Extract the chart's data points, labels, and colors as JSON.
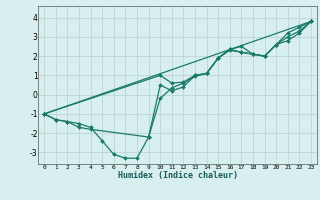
{
  "xlabel": "Humidex (Indice chaleur)",
  "bg_color": "#d8efef",
  "grid_color": "#c0d8d8",
  "line_color": "#1a7a6a",
  "xlim": [
    -0.5,
    23.5
  ],
  "ylim": [
    -3.6,
    4.6
  ],
  "yticks": [
    -3,
    -2,
    -1,
    0,
    1,
    2,
    3,
    4
  ],
  "xticks": [
    0,
    1,
    2,
    3,
    4,
    5,
    6,
    7,
    8,
    9,
    10,
    11,
    12,
    13,
    14,
    15,
    16,
    17,
    18,
    19,
    20,
    21,
    22,
    23
  ],
  "line1_x": [
    0,
    1,
    2,
    3,
    4,
    5,
    6,
    7,
    8,
    9,
    10,
    11,
    12,
    13,
    14,
    15,
    16,
    17,
    18,
    19,
    20,
    21,
    22,
    23
  ],
  "line1_y": [
    -1.0,
    -1.3,
    -1.4,
    -1.5,
    -1.7,
    -2.4,
    -3.1,
    -3.3,
    -3.3,
    -2.2,
    0.5,
    0.2,
    0.4,
    1.0,
    1.1,
    1.9,
    2.35,
    2.5,
    2.1,
    2.0,
    2.6,
    3.2,
    3.5,
    3.8
  ],
  "line2_x": [
    0,
    1,
    2,
    3,
    4,
    9,
    10,
    11,
    12,
    13,
    14,
    15,
    16,
    17,
    18,
    19,
    20,
    21,
    22,
    23
  ],
  "line2_y": [
    -1.0,
    -1.3,
    -1.4,
    -1.7,
    -1.8,
    -2.2,
    -0.2,
    0.35,
    0.6,
    0.95,
    1.1,
    1.9,
    2.35,
    2.2,
    2.1,
    2.0,
    2.6,
    3.0,
    3.3,
    3.8
  ],
  "line3_x": [
    0,
    10,
    11,
    12,
    13,
    14,
    15,
    16,
    17,
    18,
    19,
    20,
    21,
    22,
    23
  ],
  "line3_y": [
    -1.0,
    1.0,
    0.6,
    0.65,
    1.0,
    1.1,
    1.9,
    2.3,
    2.2,
    2.1,
    2.0,
    2.6,
    2.8,
    3.2,
    3.8
  ],
  "line4_x": [
    0,
    23
  ],
  "line4_y": [
    -1.0,
    3.8
  ]
}
